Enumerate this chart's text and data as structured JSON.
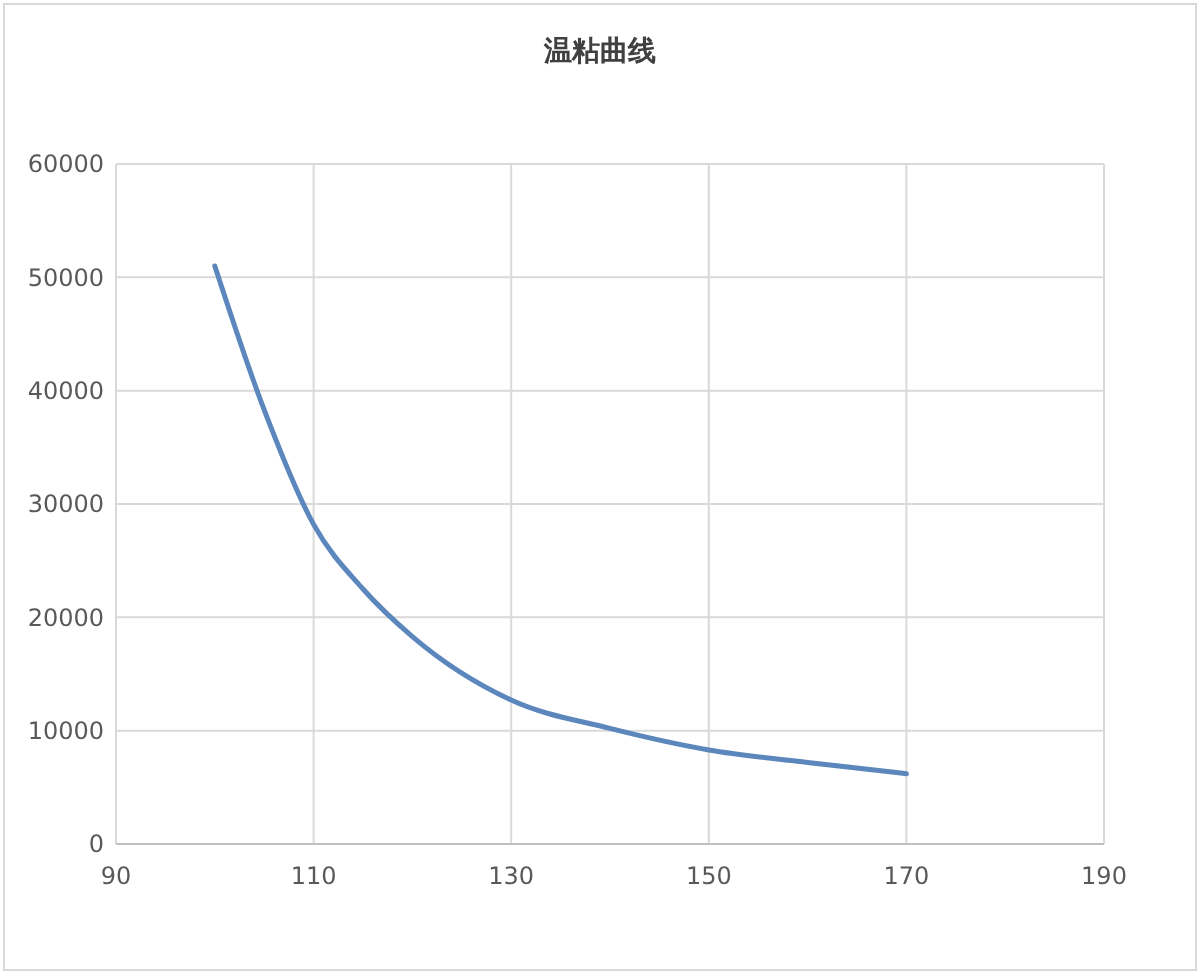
{
  "chart_data": {
    "type": "line",
    "title": "温粘曲线",
    "x": [
      100,
      105,
      110,
      115,
      120,
      130,
      140,
      150,
      160,
      170
    ],
    "series": [
      {
        "color": "#5b87bd",
        "values": [
          51000,
          38300,
          28200,
          22500,
          18300,
          12700,
          10200,
          8300,
          7200,
          6200
        ]
      }
    ],
    "xlim": [
      90,
      190
    ],
    "xticks": [
      90,
      110,
      130,
      150,
      170,
      190
    ],
    "ylim": [
      0,
      60000
    ],
    "yticks": [
      0,
      10000,
      20000,
      30000,
      40000,
      50000,
      60000
    ],
    "grid": true,
    "marker": "none",
    "line_style": "solid"
  }
}
